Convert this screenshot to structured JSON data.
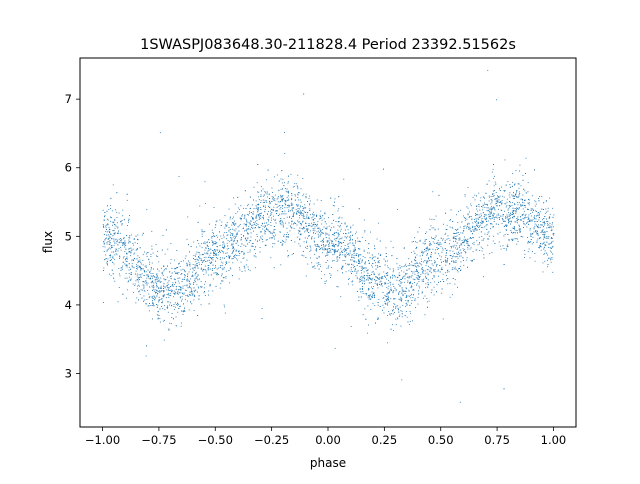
{
  "chart_data": {
    "type": "scatter",
    "title": "1SWASPJ083648.30-211828.4 Period 23392.51562s",
    "xlabel": "phase",
    "ylabel": "flux",
    "xlim": [
      -1.1,
      1.1
    ],
    "ylim": [
      2.22,
      7.6
    ],
    "xticks": [
      -1.0,
      -0.75,
      -0.5,
      -0.25,
      0.0,
      0.25,
      0.5,
      0.75,
      1.0
    ],
    "xtick_labels": [
      "−1.00",
      "−0.75",
      "−0.50",
      "−0.25",
      "0.00",
      "0.25",
      "0.50",
      "0.75",
      "1.00"
    ],
    "yticks": [
      3,
      4,
      5,
      6,
      7
    ],
    "ytick_labels": [
      "3",
      "4",
      "5",
      "6",
      "7"
    ],
    "grid": false,
    "marker_color": "#1f77b4",
    "phase_range": [
      -1.0,
      1.0
    ],
    "curve_shape": {
      "description_points_phase": [
        -1.0,
        -0.75,
        -0.7,
        -0.5,
        -0.25,
        -0.2,
        0.0,
        0.25,
        0.3,
        0.5,
        0.75,
        0.8,
        1.0
      ],
      "description_points_flux": [
        5.0,
        4.3,
        4.2,
        4.75,
        5.35,
        5.38,
        4.95,
        4.3,
        4.2,
        4.75,
        5.35,
        5.38,
        5.0
      ]
    },
    "scatter_sigma": 0.25
  }
}
